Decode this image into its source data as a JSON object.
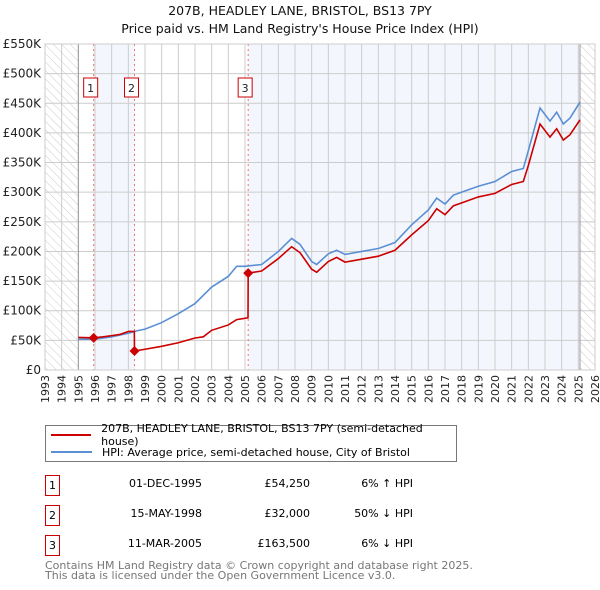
{
  "title": "207B, HEADLEY LANE, BRISTOL, BS13 7PY",
  "subtitle": "Price paid vs. HM Land Registry's House Price Index (HPI)",
  "chart_data": {
    "type": "line",
    "xlim": [
      1993,
      2026
    ],
    "ylim": [
      0,
      550000
    ],
    "x_ticks": [
      "1993",
      "1994",
      "1995",
      "1996",
      "1997",
      "1998",
      "1999",
      "2000",
      "2001",
      "2002",
      "2003",
      "2004",
      "2005",
      "2006",
      "2007",
      "2008",
      "2009",
      "2010",
      "2011",
      "2012",
      "2013",
      "2014",
      "2015",
      "2016",
      "2017",
      "2018",
      "2019",
      "2020",
      "2021",
      "2022",
      "2023",
      "2024",
      "2025",
      "2026"
    ],
    "y_ticks": [
      {
        "v": 0,
        "label": "£0"
      },
      {
        "v": 50,
        "label": "£50K"
      },
      {
        "v": 100,
        "label": "£100K"
      },
      {
        "v": 150,
        "label": "£150K"
      },
      {
        "v": 200,
        "label": "£200K"
      },
      {
        "v": 250,
        "label": "£250K"
      },
      {
        "v": 300,
        "label": "£300K"
      },
      {
        "v": 350,
        "label": "£350K"
      },
      {
        "v": 400,
        "label": "£400K"
      },
      {
        "v": 450,
        "label": "£450K"
      },
      {
        "v": 500,
        "label": "£500K"
      },
      {
        "v": 550,
        "label": "£550K"
      }
    ],
    "data_range": [
      1995,
      2025.1
    ],
    "series": [
      {
        "name": "207B, HEADLEY LANE, BRISTOL, BS13 7PY (semi-detached house)",
        "color": "#cc0000",
        "unit": "£K",
        "points": [
          [
            1995.0,
            55
          ],
          [
            1995.92,
            54.25
          ],
          [
            1996.5,
            56
          ],
          [
            1997,
            58
          ],
          [
            1997.5,
            60
          ],
          [
            1998,
            65
          ],
          [
            1998.36,
            65
          ],
          [
            1998.37,
            32
          ],
          [
            1999,
            35
          ],
          [
            2000,
            40
          ],
          [
            2001,
            46
          ],
          [
            2002,
            54
          ],
          [
            2002.5,
            56
          ],
          [
            2003,
            67
          ],
          [
            2004,
            76
          ],
          [
            2004.5,
            85
          ],
          [
            2005.18,
            88
          ],
          [
            2005.19,
            163.5
          ],
          [
            2006,
            167
          ],
          [
            2007,
            188
          ],
          [
            2007.8,
            208
          ],
          [
            2008.3,
            198
          ],
          [
            2009,
            170
          ],
          [
            2009.3,
            165
          ],
          [
            2010,
            183
          ],
          [
            2010.5,
            190
          ],
          [
            2011,
            182
          ],
          [
            2012,
            187
          ],
          [
            2013,
            192
          ],
          [
            2014,
            202
          ],
          [
            2015,
            228
          ],
          [
            2016,
            252
          ],
          [
            2016.5,
            272
          ],
          [
            2017,
            262
          ],
          [
            2017.5,
            277
          ],
          [
            2018,
            282
          ],
          [
            2019,
            292
          ],
          [
            2020,
            298
          ],
          [
            2021,
            313
          ],
          [
            2021.7,
            318
          ],
          [
            2022,
            345
          ],
          [
            2022.7,
            415
          ],
          [
            2023.3,
            393
          ],
          [
            2023.7,
            407
          ],
          [
            2024.1,
            388
          ],
          [
            2024.5,
            397
          ],
          [
            2025.1,
            422
          ]
        ]
      },
      {
        "name": "HPI: Average price, semi-detached house, City of Bristol",
        "color": "#5b8fd4",
        "unit": "£K",
        "points": [
          [
            1995.0,
            52
          ],
          [
            1996,
            52
          ],
          [
            1997,
            56
          ],
          [
            1998,
            62
          ],
          [
            1998.5,
            66
          ],
          [
            1999,
            69
          ],
          [
            2000,
            80
          ],
          [
            2001,
            95
          ],
          [
            2002,
            112
          ],
          [
            2003,
            140
          ],
          [
            2004,
            158
          ],
          [
            2004.5,
            175
          ],
          [
            2005,
            175
          ],
          [
            2006,
            178
          ],
          [
            2007,
            200
          ],
          [
            2007.8,
            222
          ],
          [
            2008.3,
            212
          ],
          [
            2009,
            183
          ],
          [
            2009.3,
            178
          ],
          [
            2010,
            196
          ],
          [
            2010.5,
            202
          ],
          [
            2011,
            195
          ],
          [
            2012,
            200
          ],
          [
            2013,
            205
          ],
          [
            2014,
            215
          ],
          [
            2015,
            245
          ],
          [
            2016,
            270
          ],
          [
            2016.5,
            290
          ],
          [
            2017,
            280
          ],
          [
            2017.5,
            295
          ],
          [
            2018,
            300
          ],
          [
            2019,
            310
          ],
          [
            2020,
            318
          ],
          [
            2021,
            335
          ],
          [
            2021.7,
            340
          ],
          [
            2022,
            370
          ],
          [
            2022.7,
            442
          ],
          [
            2023.3,
            420
          ],
          [
            2023.7,
            435
          ],
          [
            2024.1,
            415
          ],
          [
            2024.5,
            425
          ],
          [
            2025.1,
            452
          ]
        ]
      }
    ],
    "sales": [
      {
        "id": "1",
        "x": 1995.92,
        "y": 54.25
      },
      {
        "id": "2",
        "x": 1998.37,
        "y": 32
      },
      {
        "id": "3",
        "x": 2005.19,
        "y": 163.5
      }
    ],
    "legend": "below"
  },
  "legend": {
    "property": "207B, HEADLEY LANE, BRISTOL, BS13 7PY (semi-detached house)",
    "hpi": "HPI: Average price, semi-detached house, City of Bristol"
  },
  "transactions": [
    {
      "id": "1",
      "date": "01-DEC-1995",
      "price": "£54,250",
      "hpi": "6% ↑ HPI"
    },
    {
      "id": "2",
      "date": "15-MAY-1998",
      "price": "£32,000",
      "hpi": "50% ↓ HPI"
    },
    {
      "id": "3",
      "date": "11-MAR-2005",
      "price": "£163,500",
      "hpi": "6% ↓ HPI"
    }
  ],
  "footer": {
    "line1": "Contains HM Land Registry data © Crown copyright and database right 2025.",
    "line2": "This data is licensed under the Open Government Licence v3.0."
  }
}
